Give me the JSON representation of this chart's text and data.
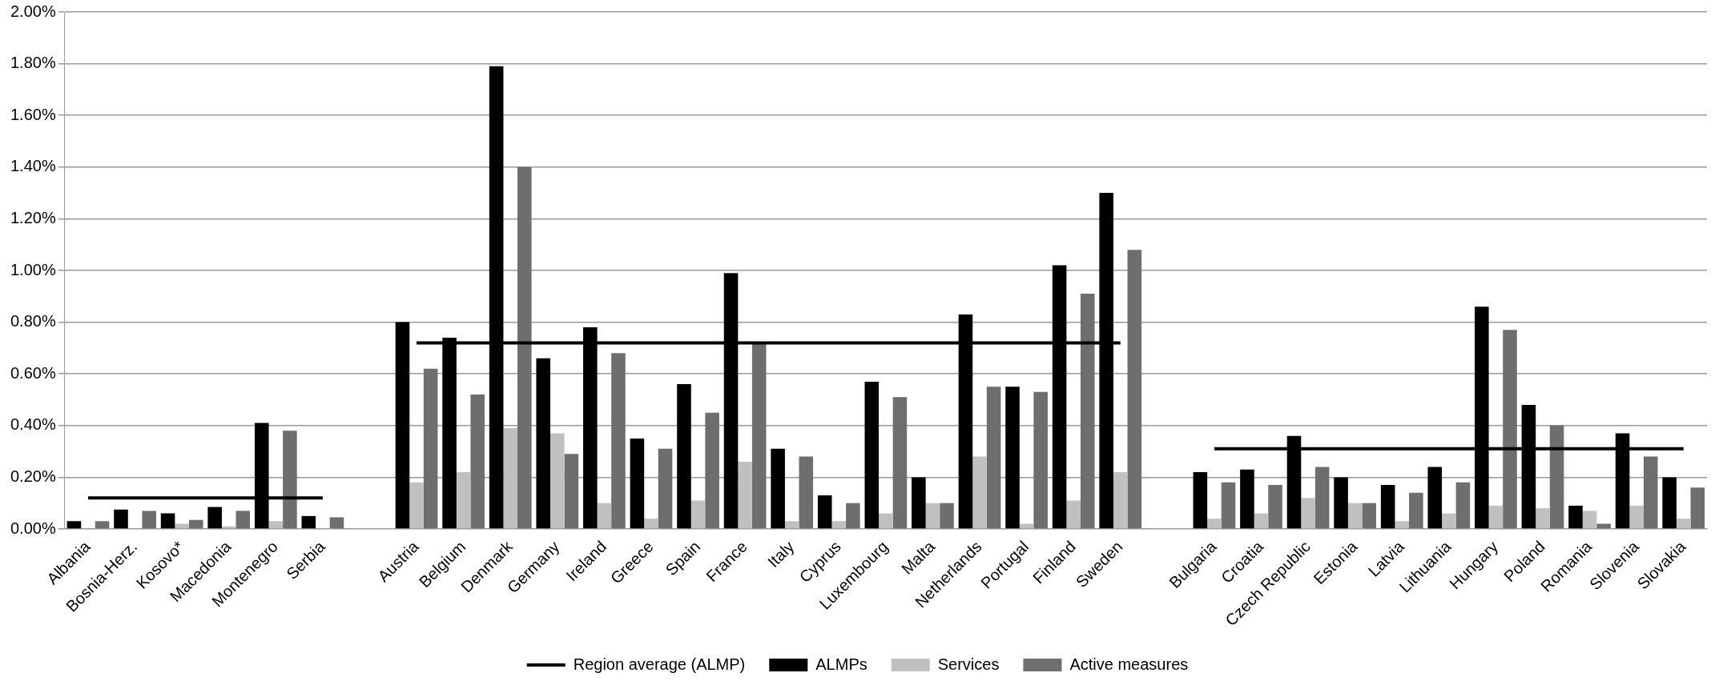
{
  "chart_data": {
    "type": "bar",
    "categories": [
      "Albania",
      "Bosnia-Herz.",
      "Kosovo*",
      "Macedonia",
      "Montenegro",
      "Serbia",
      null,
      "Austria",
      "Belgium",
      "Denmark",
      "Germany",
      "Ireland",
      "Greece",
      "Spain",
      "France",
      "Italy",
      "Cyprus",
      "Luxembourg",
      "Malta",
      "Netherlands",
      "Portugal",
      "Finland",
      "Sweden",
      null,
      "Bulgaria",
      "Croatia",
      "Czech Republic",
      "Estonia",
      "Latvia",
      "Lithuania",
      "Hungary",
      "Poland",
      "Romania",
      "Slovenia",
      "Slovakia"
    ],
    "series": [
      {
        "name": "ALMPs",
        "color": "#000000",
        "values": [
          0.03,
          0.075,
          0.06,
          0.085,
          0.41,
          0.05,
          null,
          0.8,
          0.74,
          1.79,
          0.66,
          0.78,
          0.35,
          0.56,
          0.99,
          0.31,
          0.13,
          0.57,
          0.2,
          0.83,
          0.55,
          1.02,
          1.3,
          null,
          0.22,
          0.23,
          0.36,
          0.2,
          0.17,
          0.24,
          0.86,
          0.48,
          0.09,
          0.37,
          0.2
        ]
      },
      {
        "name": "Services",
        "color": "#c0c0c0",
        "values": [
          0,
          0,
          0.02,
          0.01,
          0.03,
          0,
          null,
          0.18,
          0.22,
          0.39,
          0.37,
          0.1,
          0.04,
          0.11,
          0.26,
          0.03,
          0.03,
          0.06,
          0.1,
          0.28,
          0.02,
          0.11,
          0.22,
          null,
          0.04,
          0.06,
          0.12,
          0.1,
          0.03,
          0.06,
          0.09,
          0.08,
          0.07,
          0.09,
          0.04
        ]
      },
      {
        "name": "Active measures",
        "color": "#6e6e6e",
        "values": [
          0.03,
          0.07,
          0.035,
          0.07,
          0.38,
          0.045,
          null,
          0.62,
          0.52,
          1.4,
          0.29,
          0.68,
          0.31,
          0.45,
          0.72,
          0.28,
          0.1,
          0.51,
          0.1,
          0.55,
          0.53,
          0.91,
          1.08,
          null,
          0.18,
          0.17,
          0.24,
          0.1,
          0.14,
          0.18,
          0.77,
          0.4,
          0.02,
          0.28,
          0.16
        ]
      },
      {
        "name": "Region average (ALMP)",
        "type": "line",
        "color": "#000000",
        "values": [
          0.12,
          0.12,
          0.12,
          0.12,
          0.12,
          0.12,
          null,
          0.72,
          0.72,
          0.72,
          0.72,
          0.72,
          0.72,
          0.72,
          0.72,
          0.72,
          0.72,
          0.72,
          0.72,
          0.72,
          0.72,
          0.72,
          0.72,
          null,
          0.31,
          0.31,
          0.31,
          0.31,
          0.31,
          0.31,
          0.31,
          0.31,
          0.31,
          0.31,
          0.31
        ]
      }
    ],
    "ylim": [
      0,
      2
    ],
    "yticks": [
      {
        "value": 0,
        "label": "0.00%"
      },
      {
        "value": 0.2,
        "label": "0.20%"
      },
      {
        "value": 0.4,
        "label": "0.40%"
      },
      {
        "value": 0.6,
        "label": "0.60%"
      },
      {
        "value": 0.8,
        "label": "0.80%"
      },
      {
        "value": 1,
        "label": "1.00%"
      },
      {
        "value": 1.2,
        "label": "1.20%"
      },
      {
        "value": 1.4,
        "label": "1.40%"
      },
      {
        "value": 1.6,
        "label": "1.60%"
      },
      {
        "value": 1.8,
        "label": "1.80%"
      },
      {
        "value": 2,
        "label": "2.00%"
      }
    ],
    "grid": "y",
    "legend": "bottom"
  }
}
